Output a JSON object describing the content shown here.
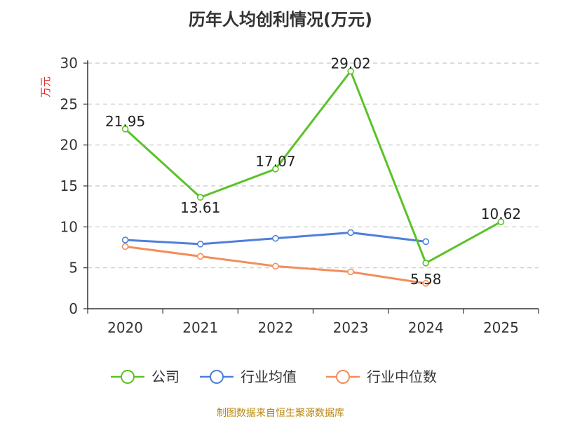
{
  "chart_data": {
    "type": "line",
    "title": "历年人均创利情况(万元)",
    "ylabel": "万元",
    "xlabel": "",
    "categories": [
      "2020",
      "2021",
      "2022",
      "2023",
      "2024",
      "2025"
    ],
    "ylim": [
      0,
      30
    ],
    "yticks": [
      0,
      5,
      10,
      15,
      20,
      25,
      30
    ],
    "grid": true,
    "legend_position": "bottom",
    "series": [
      {
        "name": "公司",
        "color": "#5bc228",
        "values": [
          21.95,
          13.61,
          17.07,
          29.02,
          5.58,
          10.62
        ],
        "labels": [
          "21.95",
          "13.61",
          "17.07",
          "29.02",
          "5.58",
          "10.62"
        ]
      },
      {
        "name": "行业均值",
        "color": "#4f7fdc",
        "values": [
          8.4,
          7.9,
          8.6,
          9.3,
          8.2,
          null
        ]
      },
      {
        "name": "行业中位数",
        "color": "#f28e5c",
        "values": [
          7.6,
          6.4,
          5.2,
          4.5,
          3.1,
          null
        ]
      }
    ]
  },
  "footer": "制图数据来自恒生聚源数据库"
}
